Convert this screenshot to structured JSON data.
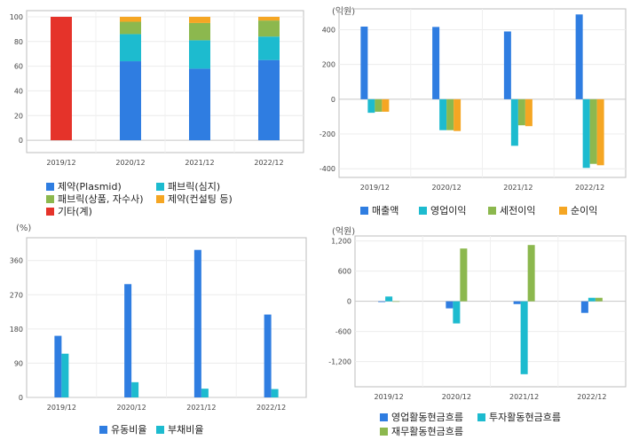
{
  "chart_data": [
    {
      "type": "bar",
      "stacked": true,
      "categories": [
        "2019/12",
        "2020/12",
        "2021/12",
        "2022/12"
      ],
      "ylim": [
        -10,
        105
      ],
      "yticks": [
        0,
        20,
        40,
        60,
        80,
        100
      ],
      "ytick_labels": [
        "0",
        "20",
        "40",
        "60",
        "80",
        "100"
      ],
      "grid": true,
      "legend_position": "bottom",
      "unit_label": "",
      "series": [
        {
          "name": "제약(Plasmid)",
          "color": "#2f7de1",
          "values": [
            0,
            64,
            58,
            65
          ]
        },
        {
          "name": "패브릭(심지)",
          "color": "#1dbbcf",
          "values": [
            0,
            22,
            23,
            19
          ]
        },
        {
          "name": "패브릭(상품, 자수사)",
          "color": "#8cb84e",
          "values": [
            0,
            10,
            14,
            13
          ]
        },
        {
          "name": "제약(컨설팅 등)",
          "color": "#f5a623",
          "values": [
            0,
            4,
            5,
            3
          ]
        },
        {
          "name": "기타(계)",
          "color": "#e5332a",
          "values": [
            100,
            0,
            0,
            0
          ]
        }
      ]
    },
    {
      "type": "bar",
      "categories": [
        "2019/12",
        "2020/12",
        "2021/12",
        "2022/12"
      ],
      "ylim": [
        -450,
        520
      ],
      "yticks": [
        -400,
        -200,
        0,
        200,
        400
      ],
      "ytick_labels": [
        "-400",
        "-200",
        "0",
        "200",
        "400"
      ],
      "grid": true,
      "legend_position": "bottom",
      "unit_label": "(억원)",
      "series": [
        {
          "name": "매출액",
          "color": "#2f7de1",
          "values": [
            418,
            416,
            390,
            488
          ]
        },
        {
          "name": "영업이익",
          "color": "#1dbbcf",
          "values": [
            -78,
            -178,
            -268,
            -395
          ]
        },
        {
          "name": "세전이익",
          "color": "#8cb84e",
          "values": [
            -72,
            -178,
            -150,
            -372
          ]
        },
        {
          "name": "순이익",
          "color": "#f5a623",
          "values": [
            -72,
            -183,
            -155,
            -380
          ]
        }
      ]
    },
    {
      "type": "bar",
      "categories": [
        "2019/12",
        "2020/12",
        "2021/12",
        "2022/12"
      ],
      "ylim": [
        0,
        420
      ],
      "yticks": [
        0,
        90,
        180,
        270,
        360
      ],
      "ytick_labels": [
        "0",
        "90",
        "180",
        "270",
        "360"
      ],
      "grid": true,
      "legend_position": "bottom",
      "unit_label": "(%)",
      "series": [
        {
          "name": "유동비율",
          "color": "#2f7de1",
          "values": [
            162,
            298,
            388,
            218
          ]
        },
        {
          "name": "부채비율",
          "color": "#1dbbcf",
          "values": [
            115,
            40,
            23,
            22
          ]
        }
      ]
    },
    {
      "type": "bar",
      "categories": [
        "2019/12",
        "2020/12",
        "2021/12",
        "2022/12"
      ],
      "ylim": [
        -1700,
        1300
      ],
      "yticks": [
        -1200,
        -600,
        0,
        600,
        1200
      ],
      "ytick_labels": [
        "-1,200",
        "-600",
        "0",
        "600",
        "1,200"
      ],
      "grid": true,
      "legend_position": "bottom",
      "unit_label": "(억원)",
      "series": [
        {
          "name": "영업활동현금흐름",
          "color": "#2f7de1",
          "values": [
            -15,
            -140,
            -55,
            -230
          ]
        },
        {
          "name": "투자활동현금흐름",
          "color": "#1dbbcf",
          "values": [
            95,
            -440,
            -1450,
            70
          ]
        },
        {
          "name": "재무활동현금흐름",
          "color": "#8cb84e",
          "values": [
            -10,
            1050,
            1120,
            70
          ]
        }
      ]
    }
  ]
}
